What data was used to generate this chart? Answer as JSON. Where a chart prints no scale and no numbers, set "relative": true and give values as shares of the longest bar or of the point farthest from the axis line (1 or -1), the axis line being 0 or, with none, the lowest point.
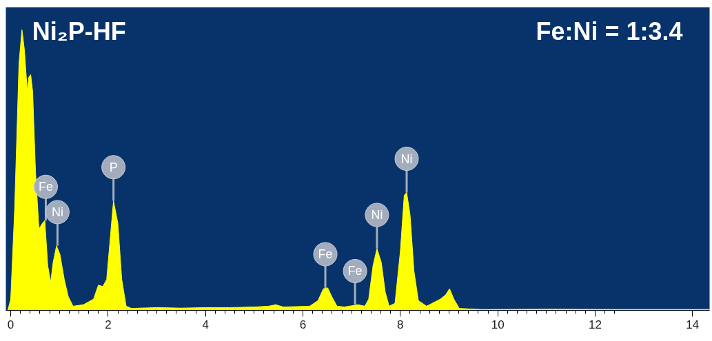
{
  "chart_data": {
    "type": "area",
    "title": "Ni₂P-HF",
    "relative": true,
    "grid": false,
    "xlim": [
      -0.1,
      14.35
    ],
    "xticks": [
      0,
      2,
      4,
      6,
      8,
      10,
      12,
      14
    ],
    "series": [
      {
        "color": "#ffff00",
        "x": [
          -0.06,
          0,
          0.08,
          0.17,
          0.23,
          0.28,
          0.34,
          0.37,
          0.41,
          0.45,
          0.51,
          0.58,
          0.65,
          0.7,
          0.76,
          0.82,
          0.87,
          0.94,
          1.01,
          1.1,
          1.18,
          1.28,
          1.49,
          1.7,
          1.8,
          1.89,
          1.97,
          2.06,
          2.11,
          2.2,
          2.28,
          2.37,
          2.48,
          3.0,
          3.5,
          4.0,
          4.5,
          5.0,
          5.3,
          5.44,
          5.6,
          6.14,
          6.31,
          6.42,
          6.51,
          6.59,
          6.7,
          6.85,
          7.13,
          7.27,
          7.35,
          7.44,
          7.52,
          7.61,
          7.69,
          7.77,
          7.89,
          8.0,
          8.08,
          8.13,
          8.2,
          8.28,
          8.37,
          8.54,
          8.82,
          8.93,
          9.01,
          9.1,
          9.21,
          9.66,
          11.0,
          12.5,
          14.35
        ],
        "values": [
          0,
          0.04,
          0.36,
          0.88,
          1.0,
          0.93,
          0.78,
          0.83,
          0.84,
          0.78,
          0.49,
          0.29,
          0.31,
          0.32,
          0.16,
          0.1,
          0.17,
          0.23,
          0.2,
          0.11,
          0.05,
          0.015,
          0.02,
          0.04,
          0.09,
          0.085,
          0.11,
          0.29,
          0.39,
          0.31,
          0.11,
          0.015,
          0.007,
          0.01,
          0.008,
          0.01,
          0.01,
          0.012,
          0.015,
          0.02,
          0.012,
          0.015,
          0.035,
          0.077,
          0.08,
          0.05,
          0.015,
          0.012,
          0.02,
          0.015,
          0.04,
          0.16,
          0.22,
          0.17,
          0.065,
          0.015,
          0.025,
          0.21,
          0.41,
          0.42,
          0.34,
          0.14,
          0.035,
          0.015,
          0.04,
          0.055,
          0.077,
          0.04,
          0.007,
          0.003,
          0.004,
          0.003,
          0.003
        ]
      }
    ],
    "annotations": [
      "Fe:Ni = 1:3.4",
      {
        "text": "Fe",
        "x": 0.72,
        "y": 0.32
      },
      {
        "text": "Ni",
        "x": 0.96,
        "y": 0.23
      },
      {
        "text": "P",
        "x": 2.11,
        "y": 0.39
      },
      {
        "text": "Fe",
        "x": 6.46,
        "y": 0.08
      },
      {
        "text": "Fe",
        "x": 7.07,
        "y": 0.02
      },
      {
        "text": "Ni",
        "x": 7.52,
        "y": 0.22
      },
      {
        "text": "Ni",
        "x": 8.13,
        "y": 0.42
      }
    ]
  }
}
